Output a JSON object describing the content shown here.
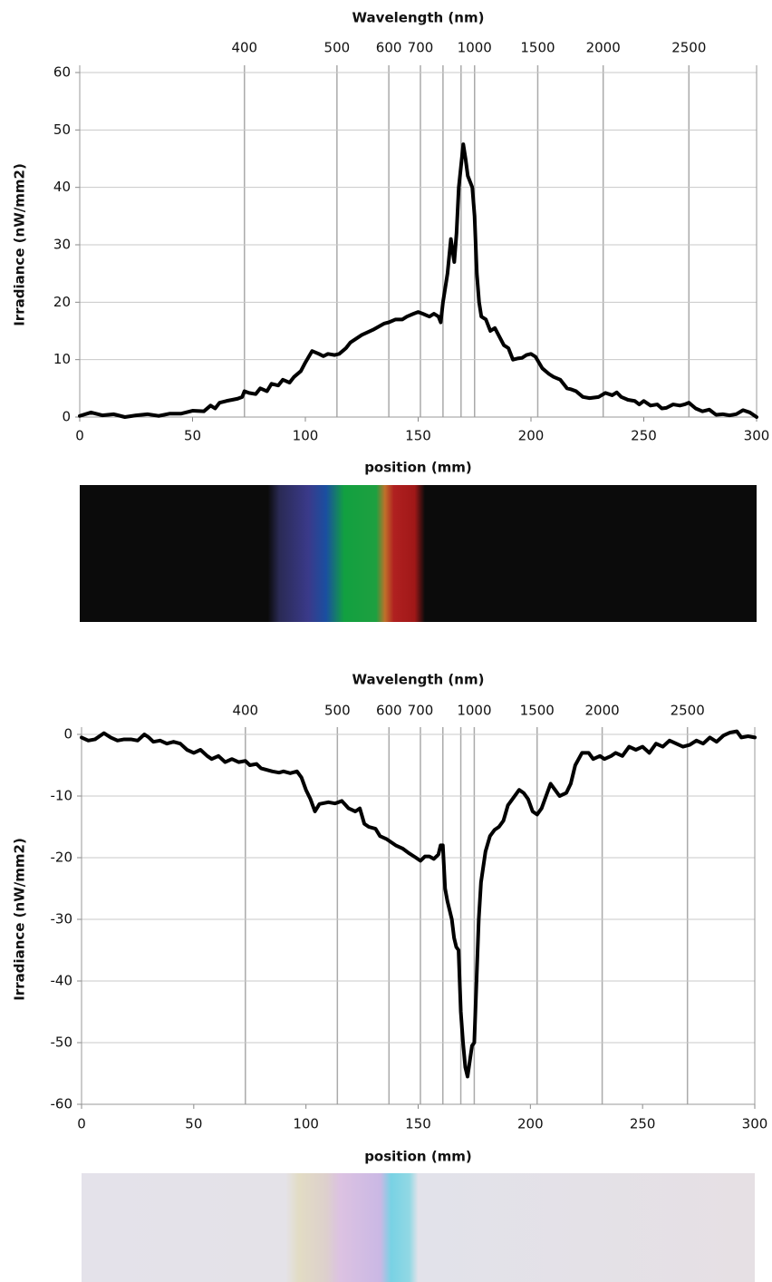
{
  "chart_data": [
    {
      "type": "line",
      "x_label": "position (mm)",
      "y_label": "Irradiance (nW/mm2)",
      "x2_label": "Wavelength (nm)",
      "xlim": [
        0,
        300
      ],
      "xticks": [
        0,
        50,
        100,
        150,
        200,
        250,
        300
      ],
      "ylim": [
        0,
        60
      ],
      "yticks": [
        0,
        10,
        20,
        30,
        40,
        50,
        60
      ],
      "x2ticks": [
        {
          "value": 73,
          "label": "400"
        },
        {
          "value": 114,
          "label": "500"
        },
        {
          "value": 137,
          "label": "600"
        },
        {
          "value": 151,
          "label": "700"
        },
        {
          "value": 161,
          "label": null
        },
        {
          "value": 169,
          "label": null
        },
        {
          "value": 175,
          "label": "1000"
        },
        {
          "value": 203,
          "label": "1500"
        },
        {
          "value": 232,
          "label": "2000"
        },
        {
          "value": 270,
          "label": "2500"
        }
      ],
      "grid": true,
      "series": [
        {
          "color": "#000000",
          "x": [
            0,
            5,
            10,
            15,
            20,
            25,
            30,
            35,
            40,
            45,
            50,
            55,
            58,
            60,
            62,
            65,
            70,
            72,
            73,
            75,
            78,
            80,
            83,
            85,
            88,
            90,
            93,
            95,
            98,
            100,
            103,
            106,
            108,
            110,
            113,
            115,
            118,
            120,
            125,
            130,
            135,
            137,
            140,
            143,
            145,
            148,
            150,
            152,
            155,
            157,
            159,
            160,
            161,
            163,
            164.5,
            166,
            167,
            168,
            170,
            171,
            172,
            174,
            175,
            176,
            177,
            178,
            180,
            182,
            184,
            186,
            188,
            190,
            192,
            194,
            196,
            198,
            200,
            202,
            205,
            208,
            210,
            213,
            216,
            218,
            220,
            223,
            226,
            230,
            233,
            236,
            238,
            240,
            243,
            246,
            248,
            250,
            253,
            256,
            258,
            260,
            263,
            266,
            268,
            270,
            273,
            276,
            279,
            282,
            285,
            288,
            291,
            294,
            297,
            300
          ],
          "values": [
            0.2,
            0.8,
            0.3,
            0.5,
            0,
            0.3,
            0.5,
            0.2,
            0.6,
            0.6,
            1.1,
            1.0,
            2,
            1.5,
            2.5,
            2.8,
            3.2,
            3.5,
            4.5,
            4.2,
            4,
            5,
            4.5,
            5.8,
            5.5,
            6.5,
            6,
            7,
            8,
            9.5,
            11.5,
            11,
            10.6,
            11,
            10.8,
            11,
            12,
            13,
            14.3,
            15.2,
            16.3,
            16.5,
            17,
            17,
            17.5,
            18,
            18.3,
            18,
            17.5,
            18,
            17.5,
            16.5,
            20,
            25,
            31,
            27,
            32,
            40,
            47.5,
            45,
            42,
            40,
            35,
            25,
            20,
            17.5,
            17,
            15,
            15.5,
            14,
            12.5,
            12,
            10,
            10.2,
            10.3,
            10.8,
            11,
            10.5,
            8.5,
            7.5,
            7,
            6.5,
            5,
            4.8,
            4.5,
            3.5,
            3.3,
            3.5,
            4.2,
            3.8,
            4.3,
            3.5,
            3,
            2.8,
            2.2,
            2.8,
            2,
            2.2,
            1.5,
            1.6,
            2.2,
            2,
            2.2,
            2.5,
            1.5,
            1.0,
            1.3,
            0.4,
            0.5,
            0.3,
            0.5,
            1.2,
            0.8,
            0
          ]
        }
      ]
    },
    {
      "type": "line",
      "x_label": "position (mm)",
      "y_label": "Irradiance (nW/mm2)",
      "x2_label": "Wavelength (nm)",
      "xlim": [
        0,
        300
      ],
      "xticks": [
        0,
        50,
        100,
        150,
        200,
        250,
        300
      ],
      "ylim": [
        -60,
        0
      ],
      "yticks": [
        -60,
        -50,
        -40,
        -30,
        -20,
        -10,
        0
      ],
      "x2ticks": [
        {
          "value": 73,
          "label": "400"
        },
        {
          "value": 114,
          "label": "500"
        },
        {
          "value": 137,
          "label": "600"
        },
        {
          "value": 151,
          "label": "700"
        },
        {
          "value": 161,
          "label": null
        },
        {
          "value": 169,
          "label": null
        },
        {
          "value": 175,
          "label": "1000"
        },
        {
          "value": 203,
          "label": "1500"
        },
        {
          "value": 232,
          "label": "2000"
        },
        {
          "value": 270,
          "label": "2500"
        }
      ],
      "grid": true,
      "series": [
        {
          "color": "#000000",
          "x": [
            0,
            3,
            6,
            10,
            13,
            16,
            19,
            22,
            25,
            28,
            30,
            32,
            35,
            38,
            41,
            44,
            47,
            50,
            53,
            56,
            58,
            61,
            64,
            67,
            70,
            73,
            75,
            78,
            80,
            85,
            88,
            90,
            93,
            96,
            98,
            100,
            102,
            104,
            106,
            110,
            113,
            116,
            119,
            122,
            124,
            126,
            128,
            131,
            133,
            136,
            140,
            143,
            146,
            149,
            151,
            153,
            155,
            157,
            159,
            160,
            161,
            162,
            163,
            165,
            166,
            167,
            168,
            169,
            170,
            171,
            172,
            173,
            174,
            175,
            176,
            177,
            178,
            180,
            182,
            184,
            186,
            188,
            190,
            192,
            195,
            197,
            199,
            201,
            203,
            205,
            207,
            209,
            211,
            213,
            216,
            218,
            220,
            223,
            226,
            228,
            231,
            233,
            236,
            238,
            241,
            244,
            247,
            250,
            253,
            256,
            259,
            262,
            265,
            268,
            271,
            274,
            277,
            280,
            283,
            286,
            289,
            292,
            294,
            297,
            300
          ],
          "values": [
            -0.5,
            -1,
            -0.8,
            0.2,
            -0.5,
            -1,
            -0.8,
            -0.8,
            -1,
            0,
            -0.5,
            -1.2,
            -1,
            -1.5,
            -1.2,
            -1.5,
            -2.5,
            -3,
            -2.5,
            -3.5,
            -4,
            -3.5,
            -4.5,
            -4,
            -4.5,
            -4.3,
            -5,
            -4.8,
            -5.5,
            -6,
            -6.2,
            -6,
            -6.3,
            -6,
            -7,
            -9,
            -10.5,
            -12.5,
            -11.3,
            -11,
            -11.2,
            -10.8,
            -12,
            -12.5,
            -12,
            -14.5,
            -15,
            -15.3,
            -16.5,
            -17,
            -18,
            -18.5,
            -19.3,
            -20,
            -20.5,
            -19.8,
            -19.8,
            -20.2,
            -19.5,
            -18,
            -18,
            -25,
            -27,
            -30,
            -33,
            -34.5,
            -35,
            -45,
            -50,
            -54,
            -55.5,
            -53,
            -50.5,
            -50,
            -40,
            -30,
            -24,
            -19,
            -16.5,
            -15.5,
            -15,
            -14,
            -11.5,
            -10.5,
            -9,
            -9.5,
            -10.5,
            -12.5,
            -13,
            -12,
            -10,
            -8,
            -9,
            -10,
            -9.5,
            -8,
            -5,
            -3,
            -3,
            -4,
            -3.5,
            -4,
            -3.5,
            -3,
            -3.5,
            -2,
            -2.5,
            -2,
            -3,
            -1.5,
            -2,
            -1,
            -1.5,
            -2,
            -1.7,
            -1,
            -1.5,
            -0.5,
            -1.2,
            -0.2,
            0.3,
            0.5,
            -0.5,
            -0.3,
            -0.5
          ]
        }
      ]
    }
  ]
}
